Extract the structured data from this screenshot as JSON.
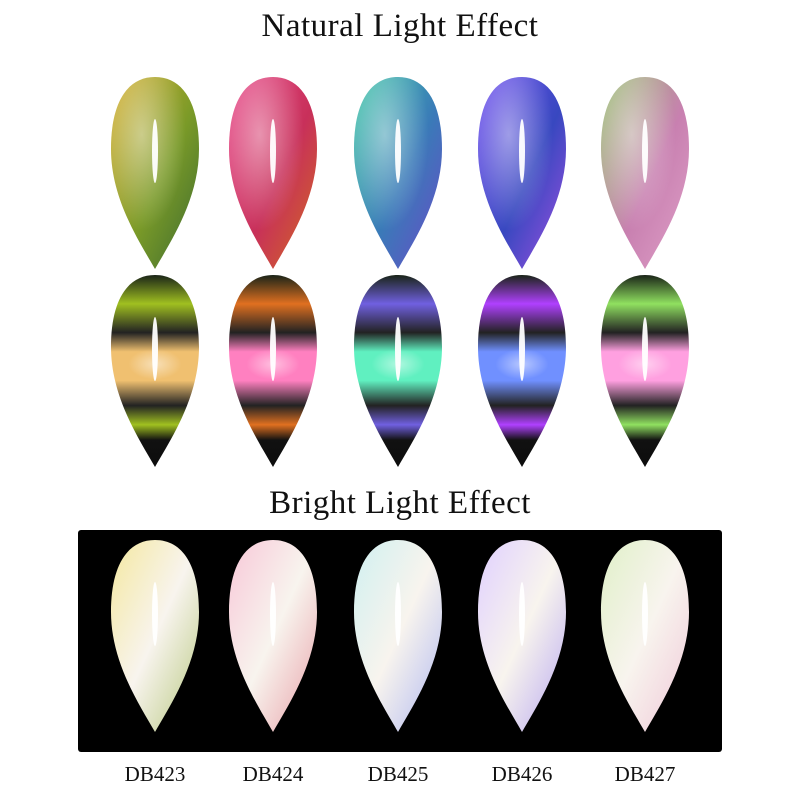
{
  "titles": {
    "natural": "Natural Light Effect",
    "bright": "Bright Light Effect"
  },
  "nails": [
    {
      "code": "DB423",
      "natural": [
        "#d8b030",
        "#7a9a28",
        "#3c6a30"
      ],
      "cat_band": [
        "#f0c070",
        "#a0c020"
      ],
      "bright": [
        "#f4e8a0",
        "#b8c880"
      ]
    },
    {
      "code": "DB424",
      "natural": [
        "#e84a8a",
        "#c8305a",
        "#d06a20"
      ],
      "cat_band": [
        "#ff80c0",
        "#e07020"
      ],
      "bright": [
        "#f8c8d8",
        "#e8a0a8"
      ]
    },
    {
      "code": "DB425",
      "natural": [
        "#40c8a8",
        "#3a7ab8",
        "#6a4ac8"
      ],
      "cat_band": [
        "#60f0c0",
        "#7060e0"
      ],
      "bright": [
        "#d0f0f0",
        "#b0b8f0"
      ]
    },
    {
      "code": "DB426",
      "natural": [
        "#7050f0",
        "#3848c0",
        "#a050e0"
      ],
      "cat_band": [
        "#7090ff",
        "#b040ff"
      ],
      "bright": [
        "#e0d0ff",
        "#b8a8f0"
      ]
    },
    {
      "code": "DB427",
      "natural": [
        "#98c070",
        "#c880b0",
        "#e0a0c8"
      ],
      "cat_band": [
        "#ffa0e0",
        "#90e060"
      ],
      "bright": [
        "#e0f0c8",
        "#f0c8d8"
      ]
    }
  ]
}
